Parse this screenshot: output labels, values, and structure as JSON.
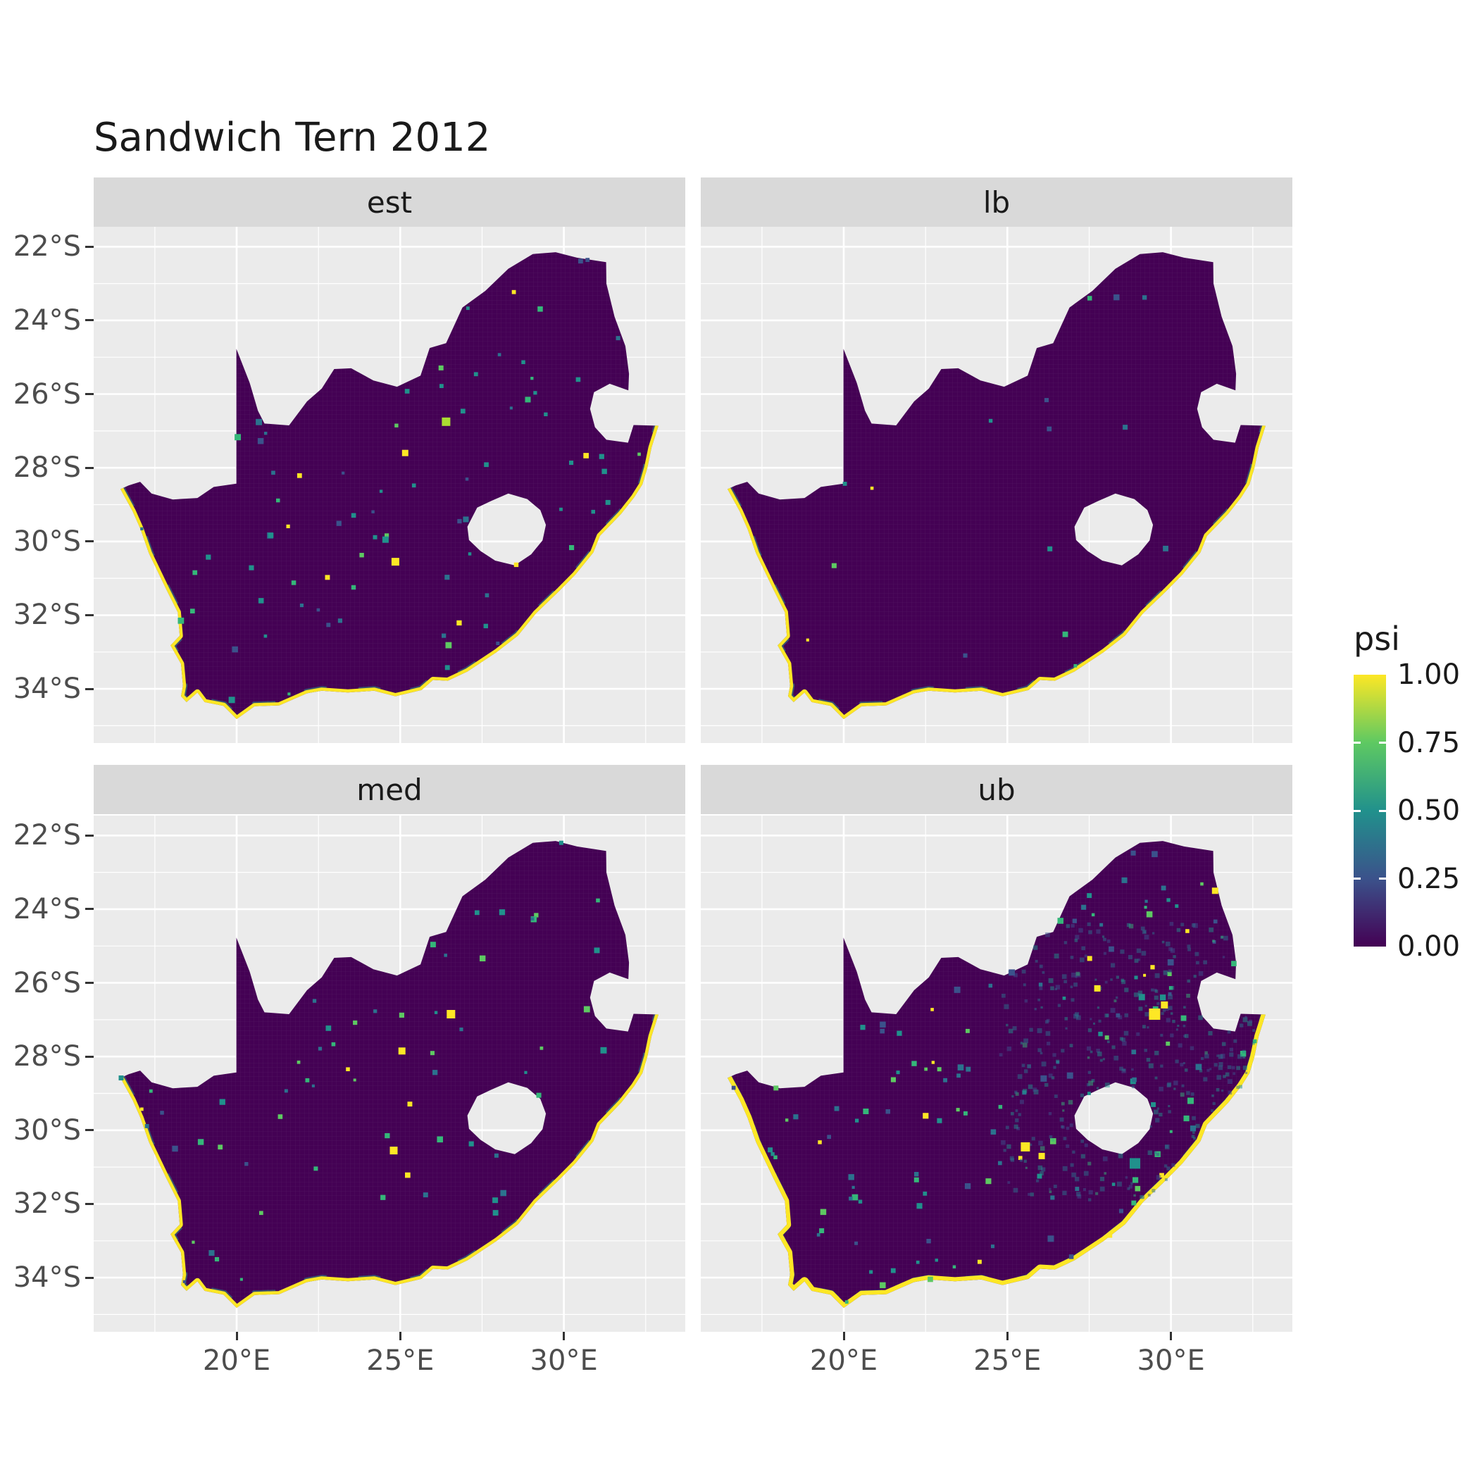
{
  "title": "Sandwich Tern 2012",
  "colors": {
    "background": "#FFFFFF",
    "panel_bg": "#EBEBEB",
    "strip_bg": "#D9D9D9",
    "grid": "#FFFFFF",
    "map_base": "#440154",
    "coast": "#FDE725",
    "axis_text": "#4D4D4D",
    "title_text": "#1A1A1A",
    "tick_mark": "#333333"
  },
  "chart_data": {
    "type": "heatmap",
    "title": "Sandwich Tern 2012",
    "facet_labels": [
      "est",
      "lb",
      "med",
      "ub"
    ],
    "legend": {
      "title": "psi",
      "domain": [
        0,
        1
      ],
      "ticks": [
        {
          "label": "1.00",
          "value": 1
        },
        {
          "label": "0.75",
          "value": 0.75
        },
        {
          "label": "0.50",
          "value": 0.5
        },
        {
          "label": "0.25",
          "value": 0.25
        },
        {
          "label": "0.00",
          "value": 0
        }
      ]
    },
    "palette_stops": [
      {
        "pos": 0,
        "color": "#440154"
      },
      {
        "pos": 0.25,
        "color": "#3B528B"
      },
      {
        "pos": 0.5,
        "color": "#21918C"
      },
      {
        "pos": 0.75,
        "color": "#5EC962"
      },
      {
        "pos": 1,
        "color": "#FDE725"
      }
    ],
    "x": {
      "ticks": [
        20,
        25,
        30
      ],
      "tick_labels": [
        "20°E",
        "25°E",
        "30°E"
      ],
      "minor": [
        17.5,
        22.5,
        27.5,
        32.5
      ],
      "domain": [
        15.63,
        33.71
      ]
    },
    "y": {
      "ticks": [
        22,
        24,
        26,
        28,
        30,
        32,
        34
      ],
      "tick_labels": [
        "22°S",
        "24°S",
        "26°S",
        "28°S",
        "30°S",
        "32°S",
        "34°S"
      ],
      "minor": [
        23,
        25,
        27,
        29,
        31,
        33,
        35
      ],
      "domain": [
        21.46,
        35.47
      ]
    },
    "summary": "Four faceted raster maps of South Africa showing occupancy probability psi for Sandwich Tern 2012 (est, lb, med, ub). Interior cells are near psi=0 (dark purple); coastline cells are near psi=1 (yellow) with teal-green fringe; the ub facet shows widespread low-value speckle in the north-east interior and larger yellow patches inland.",
    "dot_palette": [
      {
        "color": "#21918C",
        "weight": 0.3
      },
      {
        "color": "#2C728E",
        "weight": 0.22
      },
      {
        "color": "#35B779",
        "weight": 0.16
      },
      {
        "color": "#5EC962",
        "weight": 0.12
      },
      {
        "color": "#3B528B",
        "weight": 0.12
      },
      {
        "color": "#FDE725",
        "weight": 0.08
      }
    ],
    "cloud_palette": [
      {
        "color": "#2C728E",
        "weight": 0.4
      },
      {
        "color": "#21918C",
        "weight": 0.3
      },
      {
        "color": "#3B528B",
        "weight": 0.2
      },
      {
        "color": "#35B779",
        "weight": 0.1
      }
    ],
    "coast_vertex_count": 40,
    "map_outline_lonlat": [
      [
        16.45,
        28.58
      ],
      [
        16.82,
        29.18
      ],
      [
        17.06,
        29.66
      ],
      [
        17.32,
        30.32
      ],
      [
        17.85,
        31.3
      ],
      [
        18.2,
        31.92
      ],
      [
        18.26,
        32.56
      ],
      [
        17.98,
        32.82
      ],
      [
        18.3,
        33.32
      ],
      [
        18.36,
        33.92
      ],
      [
        18.3,
        34.2
      ],
      [
        18.47,
        34.36
      ],
      [
        18.8,
        34.1
      ],
      [
        19.02,
        34.36
      ],
      [
        19.6,
        34.46
      ],
      [
        20.0,
        34.82
      ],
      [
        20.55,
        34.47
      ],
      [
        21.3,
        34.45
      ],
      [
        22.15,
        34.12
      ],
      [
        22.6,
        34.05
      ],
      [
        23.4,
        34.1
      ],
      [
        24.2,
        34.05
      ],
      [
        24.85,
        34.2
      ],
      [
        25.65,
        34.03
      ],
      [
        26.0,
        33.76
      ],
      [
        26.45,
        33.78
      ],
      [
        27.05,
        33.53
      ],
      [
        27.95,
        33.0
      ],
      [
        28.6,
        32.55
      ],
      [
        29.15,
        31.95
      ],
      [
        29.85,
        31.35
      ],
      [
        30.35,
        30.9
      ],
      [
        30.9,
        30.3
      ],
      [
        31.1,
        29.85
      ],
      [
        31.75,
        29.25
      ],
      [
        32.15,
        28.8
      ],
      [
        32.4,
        28.45
      ],
      [
        32.55,
        28.0
      ],
      [
        32.68,
        27.45
      ],
      [
        32.89,
        26.86
      ],
      [
        32.13,
        26.84
      ],
      [
        31.96,
        27.32
      ],
      [
        31.3,
        27.24
      ],
      [
        30.95,
        26.9
      ],
      [
        30.8,
        26.4
      ],
      [
        30.92,
        25.95
      ],
      [
        31.4,
        25.72
      ],
      [
        31.97,
        25.9
      ],
      [
        31.99,
        25.45
      ],
      [
        31.88,
        24.7
      ],
      [
        31.55,
        23.9
      ],
      [
        31.3,
        23.0
      ],
      [
        31.29,
        22.42
      ],
      [
        30.4,
        22.3
      ],
      [
        29.75,
        22.15
      ],
      [
        29.05,
        22.2
      ],
      [
        28.3,
        22.6
      ],
      [
        27.6,
        23.2
      ],
      [
        26.9,
        23.65
      ],
      [
        26.4,
        24.62
      ],
      [
        25.9,
        24.75
      ],
      [
        25.62,
        25.5
      ],
      [
        24.9,
        25.8
      ],
      [
        24.18,
        25.63
      ],
      [
        23.5,
        25.3
      ],
      [
        22.98,
        25.32
      ],
      [
        22.6,
        25.85
      ],
      [
        22.15,
        26.2
      ],
      [
        21.6,
        26.85
      ],
      [
        20.85,
        26.8
      ],
      [
        20.65,
        26.45
      ],
      [
        20.4,
        25.7
      ],
      [
        19.99,
        24.77
      ],
      [
        19.99,
        28.43
      ],
      [
        19.3,
        28.52
      ],
      [
        18.8,
        28.82
      ],
      [
        18.05,
        28.86
      ],
      [
        17.4,
        28.7
      ],
      [
        17.05,
        28.38
      ],
      [
        16.7,
        28.48
      ]
    ],
    "lesotho_hole_lonlat": [
      [
        27.05,
        29.6
      ],
      [
        27.35,
        29.08
      ],
      [
        27.78,
        28.9
      ],
      [
        28.3,
        28.7
      ],
      [
        28.88,
        28.85
      ],
      [
        29.28,
        29.15
      ],
      [
        29.45,
        29.55
      ],
      [
        29.35,
        29.97
      ],
      [
        29.0,
        30.35
      ],
      [
        28.5,
        30.65
      ],
      [
        27.9,
        30.52
      ],
      [
        27.45,
        30.26
      ],
      [
        27.1,
        29.96
      ]
    ],
    "facets": [
      {
        "label": "est",
        "seed": 101,
        "n_points": 78,
        "coast_fringe": true,
        "cloud": null,
        "highlights": [
          {
            "lon": 26.4,
            "lat": 26.75,
            "color": "#aadc32",
            "size": 12
          },
          {
            "lon": 25.15,
            "lat": 27.6,
            "color": "#fde725",
            "size": 9
          },
          {
            "lon": 24.85,
            "lat": 30.55,
            "color": "#fde725",
            "size": 11
          },
          {
            "lon": 24.55,
            "lat": 29.95,
            "color": "#21918c",
            "size": 9
          },
          {
            "lon": 28.9,
            "lat": 26.15,
            "color": "#35b779",
            "size": 8
          },
          {
            "lon": 19.85,
            "lat": 34.3,
            "color": "#21918c",
            "size": 9
          }
        ]
      },
      {
        "label": "lb",
        "seed": 202,
        "n_points": 14,
        "coast_fringe": true,
        "cloud": null,
        "highlights": [
          {
            "lon": 28.6,
            "lat": 26.9,
            "color": "#2c728e",
            "size": 7
          },
          {
            "lon": 26.3,
            "lat": 30.2,
            "color": "#21918c",
            "size": 7
          }
        ]
      },
      {
        "label": "med",
        "seed": 303,
        "n_points": 62,
        "coast_fringe": true,
        "cloud": null,
        "highlights": [
          {
            "lon": 26.55,
            "lat": 26.85,
            "color": "#fde725",
            "size": 12
          },
          {
            "lon": 25.05,
            "lat": 27.85,
            "color": "#fde725",
            "size": 10
          },
          {
            "lon": 24.8,
            "lat": 30.55,
            "color": "#fde725",
            "size": 11
          },
          {
            "lon": 27.9,
            "lat": 31.9,
            "color": "#21918c",
            "size": 8
          }
        ]
      },
      {
        "label": "ub",
        "seed": 404,
        "n_points": 135,
        "coast_fringe": true,
        "cloud": {
          "n": 380,
          "lon_range": [
            24.8,
            32.6
          ],
          "lat_range": [
            24.4,
            31.9
          ],
          "opacity": 0.5
        },
        "highlights": [
          {
            "lon": 29.5,
            "lat": 26.85,
            "color": "#fde725",
            "size": 16
          },
          {
            "lon": 29.8,
            "lat": 26.6,
            "color": "#fde725",
            "size": 10
          },
          {
            "lon": 25.55,
            "lat": 30.45,
            "color": "#fde725",
            "size": 13
          },
          {
            "lon": 26.05,
            "lat": 30.7,
            "color": "#fde725",
            "size": 9
          },
          {
            "lon": 28.9,
            "lat": 30.9,
            "color": "#21918c",
            "size": 15
          },
          {
            "lon": 27.75,
            "lat": 26.15,
            "color": "#fde725",
            "size": 9
          },
          {
            "lon": 30.6,
            "lat": 29.2,
            "color": "#35b779",
            "size": 9
          }
        ]
      }
    ]
  }
}
